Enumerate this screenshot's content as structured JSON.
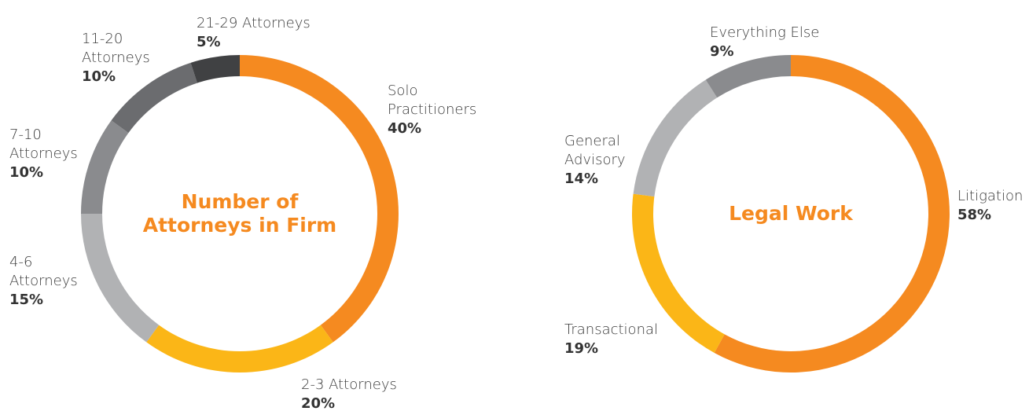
{
  "chart_data": [
    {
      "type": "pie",
      "title": "Number of Attorneys in Firm",
      "categories": [
        "Solo Practitioners",
        "2-3 Attorneys",
        "4-6 Attorneys",
        "7-10 Attorneys",
        "11-20 Attorneys",
        "21-29 Attorneys"
      ],
      "values": [
        40,
        20,
        15,
        10,
        10,
        5
      ],
      "value_labels": [
        "40%",
        "20%",
        "15%",
        "10%",
        "10%",
        "5%"
      ],
      "colors": [
        "#f58a20",
        "#fbb617",
        "#b1b2b4",
        "#8a8b8e",
        "#6b6c6f",
        "#404143"
      ]
    },
    {
      "type": "pie",
      "title": "Legal Work",
      "categories": [
        "Litigation",
        "Transactional",
        "General Advisory",
        "Everything Else"
      ],
      "values": [
        58,
        19,
        14,
        9
      ],
      "value_labels": [
        "58%",
        "19%",
        "14%",
        "9%"
      ],
      "colors": [
        "#f58a20",
        "#fbb617",
        "#b1b2b4",
        "#8a8b8e"
      ]
    }
  ]
}
